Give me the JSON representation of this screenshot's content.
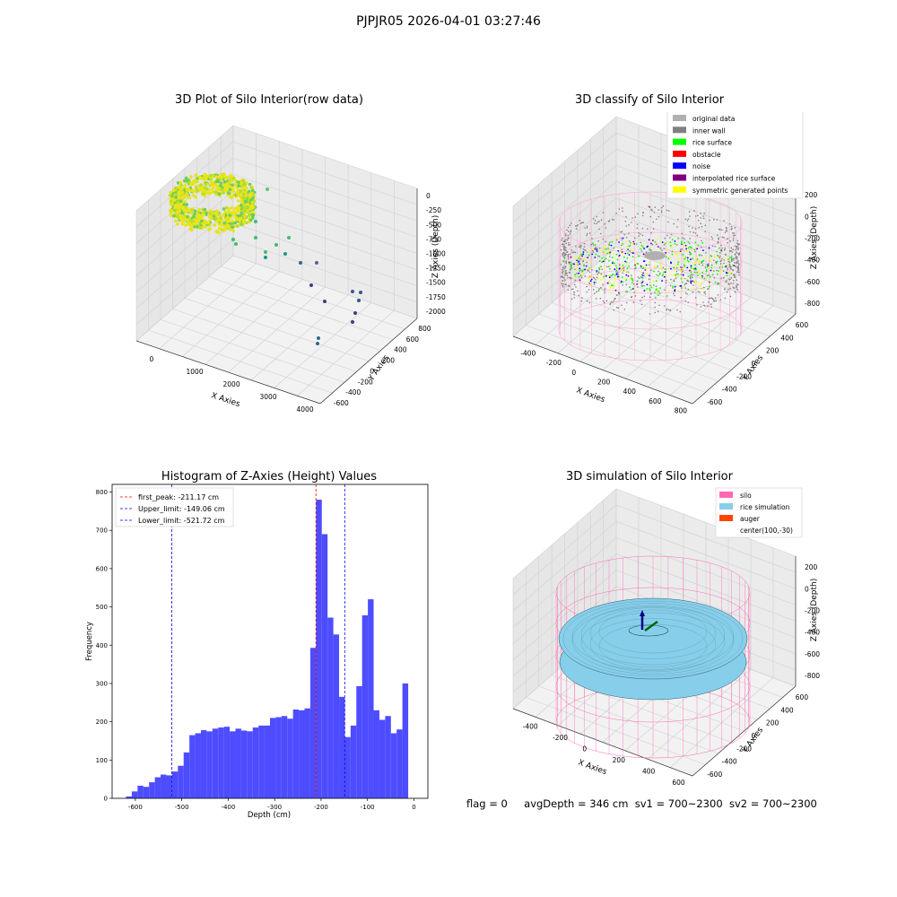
{
  "figure": {
    "suptitle": "PJPJR05 2026-04-01 03:27:46",
    "status": {
      "flag": "flag = 0",
      "avg_depth": "avgDepth = 346 cm",
      "sv1": "sv1 = 700~2300",
      "sv2": "sv2 = 700~2300"
    }
  },
  "colors": {
    "original_data": "#b0b0b0",
    "inner_wall": "#808080",
    "rice_surface": "#00ff00",
    "obstacle": "#ff0000",
    "noise": "#0000ff",
    "interpolated_rice_surface": "#800080",
    "symmetric_generated_points": "#ffff00",
    "silo": "#ff69b4",
    "rice_simulation": "#87ceeb",
    "auger": "#ff4500",
    "histogram_bar": "#4d4dff",
    "first_peak_line": "#ff0000",
    "limit_line": "#0000ff"
  },
  "chart_data": [
    {
      "type": "scatter",
      "projection": "3d",
      "title": "3D Plot of Silo Interior(row data)",
      "xlabel": "X Axies",
      "ylabel": "Y Axies",
      "zlabel": "Z Axies (Depth)",
      "x_ticks": [
        "0",
        "1000",
        "2000",
        "3000",
        "4000"
      ],
      "y_ticks": [
        "-600",
        "-400",
        "-200",
        "0",
        "200",
        "400",
        "600",
        "800"
      ],
      "z_ticks": [
        "0",
        "-250",
        "-500",
        "-750",
        "-1000",
        "-1250",
        "-1500",
        "-1750",
        "-2000"
      ],
      "colormap": "viridis",
      "grid": true
    },
    {
      "type": "scatter",
      "projection": "3d",
      "title": "3D classify of Silo Interior",
      "xlabel": "X Axies",
      "ylabel": "Y Axies",
      "zlabel": "Z Axies (Depth)",
      "x_ticks": [
        "-400",
        "-200",
        "0",
        "200",
        "400",
        "600",
        "800"
      ],
      "y_ticks": [
        "-600",
        "-400",
        "-200",
        "0",
        "200",
        "400",
        "600"
      ],
      "z_ticks": [
        "200",
        "0",
        "-200",
        "-400",
        "-600",
        "-800"
      ],
      "legend_position": "top-right",
      "legend": [
        {
          "label": "original data",
          "color": "#b0b0b0"
        },
        {
          "label": "inner wall",
          "color": "#808080"
        },
        {
          "label": "rice surface",
          "color": "#00ff00"
        },
        {
          "label": "obstacle",
          "color": "#ff0000"
        },
        {
          "label": "noise",
          "color": "#0000ff"
        },
        {
          "label": "interpolated rice surface",
          "color": "#800080"
        },
        {
          "label": "symmetric generated points",
          "color": "#ffff00"
        }
      ],
      "grid": true
    },
    {
      "type": "bar",
      "title": "Histogram of Z-Axies (Height) Values",
      "xlabel": "Depth (cm)",
      "ylabel": "Frequency",
      "xlim": [
        -650,
        30
      ],
      "ylim": [
        0,
        820
      ],
      "x_ticks": [
        -600,
        -500,
        -400,
        -300,
        -200,
        -100,
        0
      ],
      "y_ticks": [
        0,
        100,
        200,
        300,
        400,
        500,
        600,
        700,
        800
      ],
      "bin_start": -620,
      "bin_width": 12.4,
      "values": [
        5,
        18,
        33,
        30,
        42,
        55,
        62,
        60,
        70,
        85,
        120,
        165,
        170,
        178,
        175,
        182,
        185,
        187,
        175,
        182,
        177,
        175,
        185,
        190,
        190,
        210,
        212,
        215,
        208,
        232,
        230,
        235,
        393,
        780,
        690,
        472,
        428,
        265,
        160,
        190,
        293,
        478,
        520,
        230,
        205,
        215,
        170,
        180,
        300
      ],
      "lines": [
        {
          "label": "first_peak: -211.17 cm",
          "x": -211.17,
          "color": "#ff0000"
        },
        {
          "label": "Upper_limit: -149.06 cm",
          "x": -149.06,
          "color": "#0000ff"
        },
        {
          "label": "Lower_limit: -521.72 cm",
          "x": -521.72,
          "color": "#0000ff"
        }
      ],
      "legend_position": "top-left"
    },
    {
      "type": "surface",
      "projection": "3d",
      "title": "3D simulation of Silo Interior",
      "xlabel": "X Axies",
      "ylabel": "Y Axies",
      "zlabel": "Z Axies (Depth)",
      "x_ticks": [
        "-400",
        "-200",
        "0",
        "200",
        "400",
        "600"
      ],
      "y_ticks": [
        "-600",
        "-400",
        "-200",
        "0",
        "200",
        "400",
        "600"
      ],
      "z_ticks": [
        "200",
        "0",
        "-200",
        "-400",
        "-600",
        "-800"
      ],
      "legend_position": "top-right",
      "legend": [
        {
          "label": "silo",
          "color": "#ff69b4"
        },
        {
          "label": "rice simulation",
          "color": "#87ceeb"
        },
        {
          "label": "auger",
          "color": "#ff4500"
        },
        {
          "label": "center(100,-30)",
          "color": ""
        }
      ],
      "grid": true
    }
  ]
}
